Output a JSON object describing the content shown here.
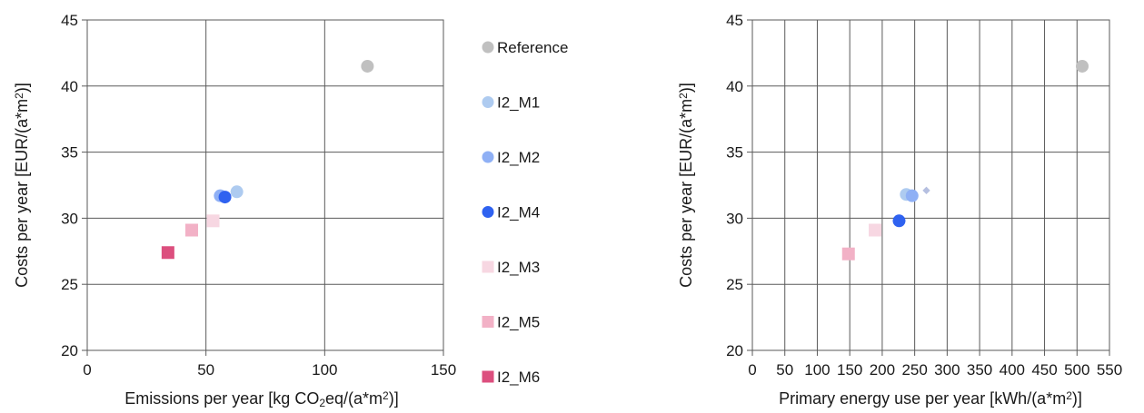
{
  "chart_data": [
    {
      "type": "scatter",
      "title": "",
      "xlabel": {
        "pre": "Emissions per year [kg CO",
        "sub": "2",
        "mid": "eq/(a*m",
        "sup": "2",
        "post": ")]"
      },
      "ylabel": {
        "pre": "Costs per year [EUR/(a*m",
        "sup": "2",
        "post": ")]"
      },
      "xlim": [
        0,
        150
      ],
      "ylim": [
        20,
        45
      ],
      "xticks": [
        "0",
        "50",
        "100",
        "150"
      ],
      "yticks": [
        "20",
        "25",
        "30",
        "35",
        "40",
        "45"
      ],
      "grid": true,
      "series": [
        {
          "name": "Reference",
          "marker": "circle",
          "color": "#c0c0c0",
          "x": 118,
          "y": 41.5
        },
        {
          "name": "I2_M1",
          "marker": "circle",
          "color": "#aecbf0",
          "x": 63,
          "y": 32.0
        },
        {
          "name": "I2_M2",
          "marker": "circle",
          "color": "#8fb0f5",
          "x": 56,
          "y": 31.7
        },
        {
          "name": "I2_M4",
          "marker": "circle",
          "color": "#2f62f0",
          "x": 58,
          "y": 31.6
        },
        {
          "name": "I2_M3",
          "marker": "square",
          "color": "#f7d7e2",
          "x": 53,
          "y": 29.8
        },
        {
          "name": "I2_M5",
          "marker": "square",
          "color": "#f2b1c6",
          "x": 44,
          "y": 29.1
        },
        {
          "name": "I2_M6",
          "marker": "square",
          "color": "#dc4f7e",
          "x": 34,
          "y": 27.4
        }
      ]
    },
    {
      "type": "scatter",
      "title": "",
      "xlabel": {
        "pre": "Primary energy use per year [kWh/(a*m",
        "sup": "2",
        "post": ")]"
      },
      "ylabel": {
        "pre": "Costs per year [EUR/(a*m",
        "sup": "2",
        "post": ")]"
      },
      "xlim": [
        0,
        550
      ],
      "ylim": [
        20,
        45
      ],
      "xticks": [
        "0",
        "50",
        "100",
        "150",
        "200",
        "250",
        "300",
        "350",
        "400",
        "450",
        "500",
        "550"
      ],
      "yticks": [
        "20",
        "25",
        "30",
        "35",
        "40",
        "45"
      ],
      "grid": true,
      "series": [
        {
          "name": "Reference",
          "marker": "circle",
          "color": "#c0c0c0",
          "x": 508,
          "y": 41.5
        },
        {
          "name": "I2_M1",
          "marker": "circle",
          "color": "#aecbf0",
          "x": 237,
          "y": 31.8
        },
        {
          "name": "I2_M2",
          "marker": "circle",
          "color": "#8fb0f5",
          "x": 246,
          "y": 31.7
        },
        {
          "name": "I2_M4",
          "marker": "circle",
          "color": "#2f62f0",
          "x": 226,
          "y": 29.8
        },
        {
          "name": "I2_M3",
          "marker": "square",
          "color": "#f7d7e2",
          "x": 189,
          "y": 29.1
        },
        {
          "name": "I2_M5",
          "marker": "square",
          "color": "#f2b1c6",
          "x": 148,
          "y": 27.3
        },
        {
          "name": "",
          "marker": "diamond",
          "color": "#b5bfe0",
          "x": 268,
          "y": 32.1
        }
      ]
    }
  ],
  "legend": {
    "placement": "between-charts",
    "items": [
      {
        "label": "Reference",
        "marker": "circle",
        "color": "#c0c0c0"
      },
      {
        "label": "I2_M1",
        "marker": "circle",
        "color": "#aecbf0"
      },
      {
        "label": "I2_M2",
        "marker": "circle",
        "color": "#8fb0f5"
      },
      {
        "label": "I2_M4",
        "marker": "circle",
        "color": "#2f62f0"
      },
      {
        "label": "I2_M3",
        "marker": "square",
        "color": "#f7d7e2"
      },
      {
        "label": "I2_M5",
        "marker": "square",
        "color": "#f2b1c6"
      },
      {
        "label": "I2_M6",
        "marker": "square",
        "color": "#dc4f7e"
      }
    ]
  }
}
